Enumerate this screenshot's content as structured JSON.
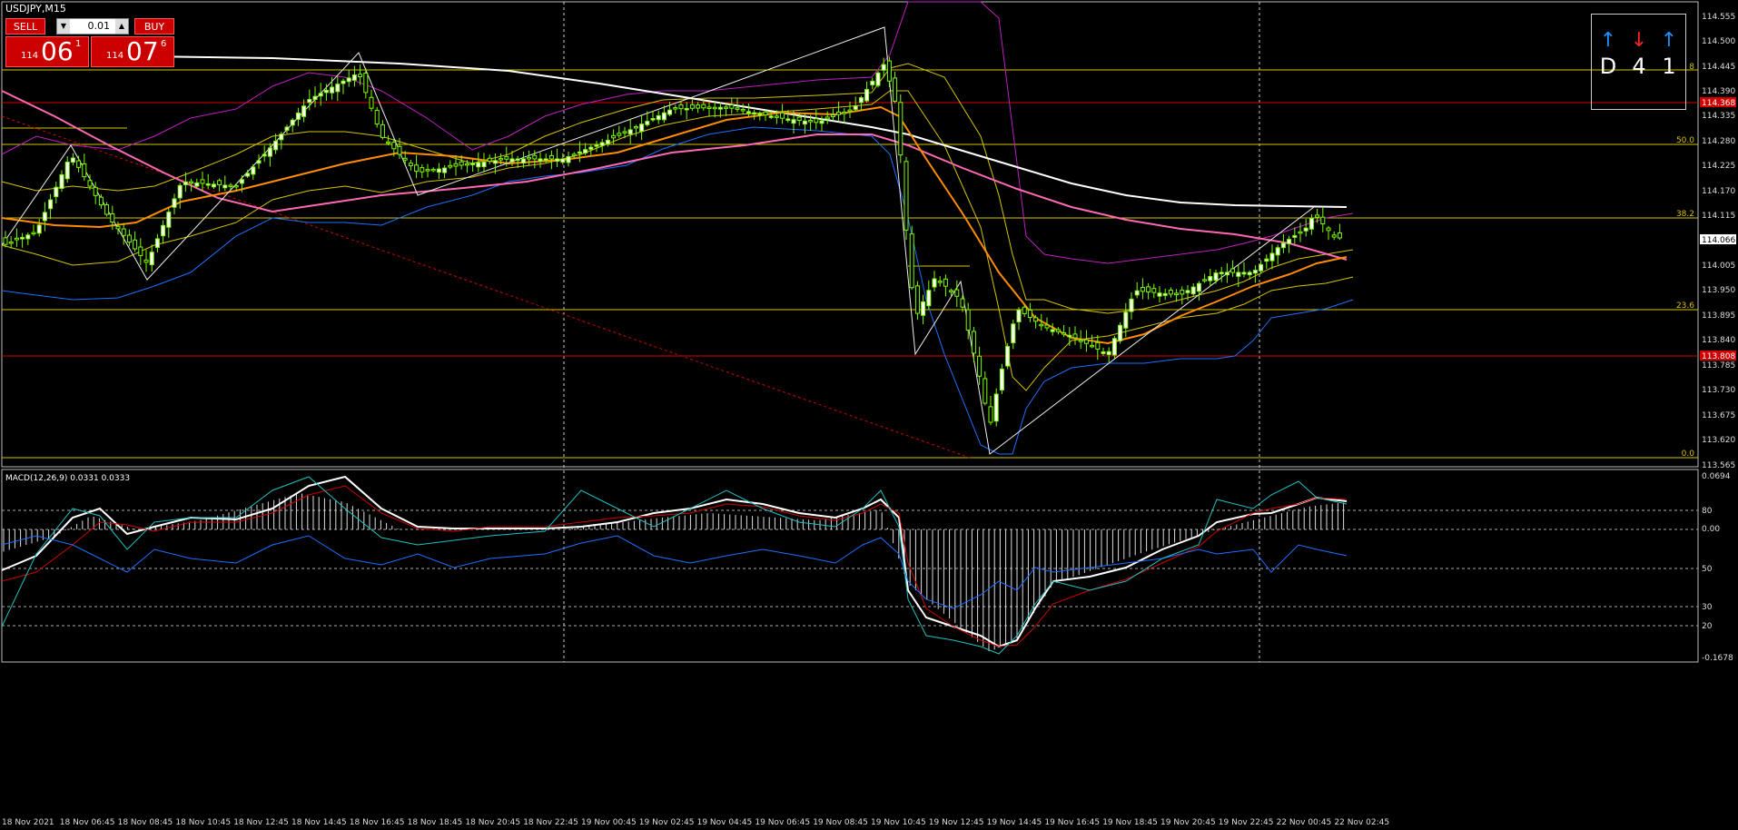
{
  "window": {
    "title": "USDJPY,M15"
  },
  "trade_panel": {
    "sell_label": "SELL",
    "buy_label": "BUY",
    "lot_value": "0.01",
    "sell_price": {
      "small": "114",
      "big": "06",
      "sup": "1"
    },
    "buy_price": {
      "small": "114",
      "big": "07",
      "sup": "6"
    }
  },
  "timeframe_panel": [
    {
      "label": "D",
      "direction": "up",
      "color": "#1e90ff"
    },
    {
      "label": "4",
      "direction": "down",
      "color": "#ff2020"
    },
    {
      "label": "1",
      "direction": "up",
      "color": "#1e90ff"
    }
  ],
  "price_axis": {
    "ticks": [
      "114.555",
      "114.500",
      "114.445",
      "114.390",
      "114.335",
      "114.280",
      "114.225",
      "114.170",
      "114.115",
      "114.005",
      "113.950",
      "113.895",
      "113.840",
      "113.785",
      "113.730",
      "113.675",
      "113.620",
      "113.565"
    ],
    "current_price_label": "114.066",
    "red_level_labels": [
      "114.368",
      "113.808"
    ]
  },
  "fib_labels": [
    "8",
    "50.0",
    "38.2",
    "23.6",
    "0.0"
  ],
  "time_axis": [
    "18 Nov 2021",
    "18 Nov 06:45",
    "18 Nov 08:45",
    "18 Nov 10:45",
    "18 Nov 12:45",
    "18 Nov 14:45",
    "18 Nov 16:45",
    "18 Nov 18:45",
    "18 Nov 20:45",
    "18 Nov 22:45",
    "19 Nov 00:45",
    "19 Nov 02:45",
    "19 Nov 04:45",
    "19 Nov 06:45",
    "19 Nov 08:45",
    "19 Nov 10:45",
    "19 Nov 12:45",
    "19 Nov 14:45",
    "19 Nov 16:45",
    "19 Nov 18:45",
    "19 Nov 20:45",
    "19 Nov 22:45",
    "22 Nov 00:45",
    "22 Nov 02:45"
  ],
  "macd": {
    "label": "MACD(12,26,9) 0.0331 0.0333",
    "axis_labels": [
      "0.0694",
      "80",
      "0.00",
      "50",
      "30",
      "20",
      "-0.1678"
    ]
  },
  "colors": {
    "bull": "#7cfc00",
    "bull_body": "#ffffff",
    "fib": "#d4c400",
    "red_level": "#d00000",
    "ma_white": "#ffffff",
    "ma_pink": "#ff69b4",
    "ma_orange": "#ff8c00",
    "bb_blue": "#1e6fff",
    "bb_magenta": "#c020c0"
  }
}
